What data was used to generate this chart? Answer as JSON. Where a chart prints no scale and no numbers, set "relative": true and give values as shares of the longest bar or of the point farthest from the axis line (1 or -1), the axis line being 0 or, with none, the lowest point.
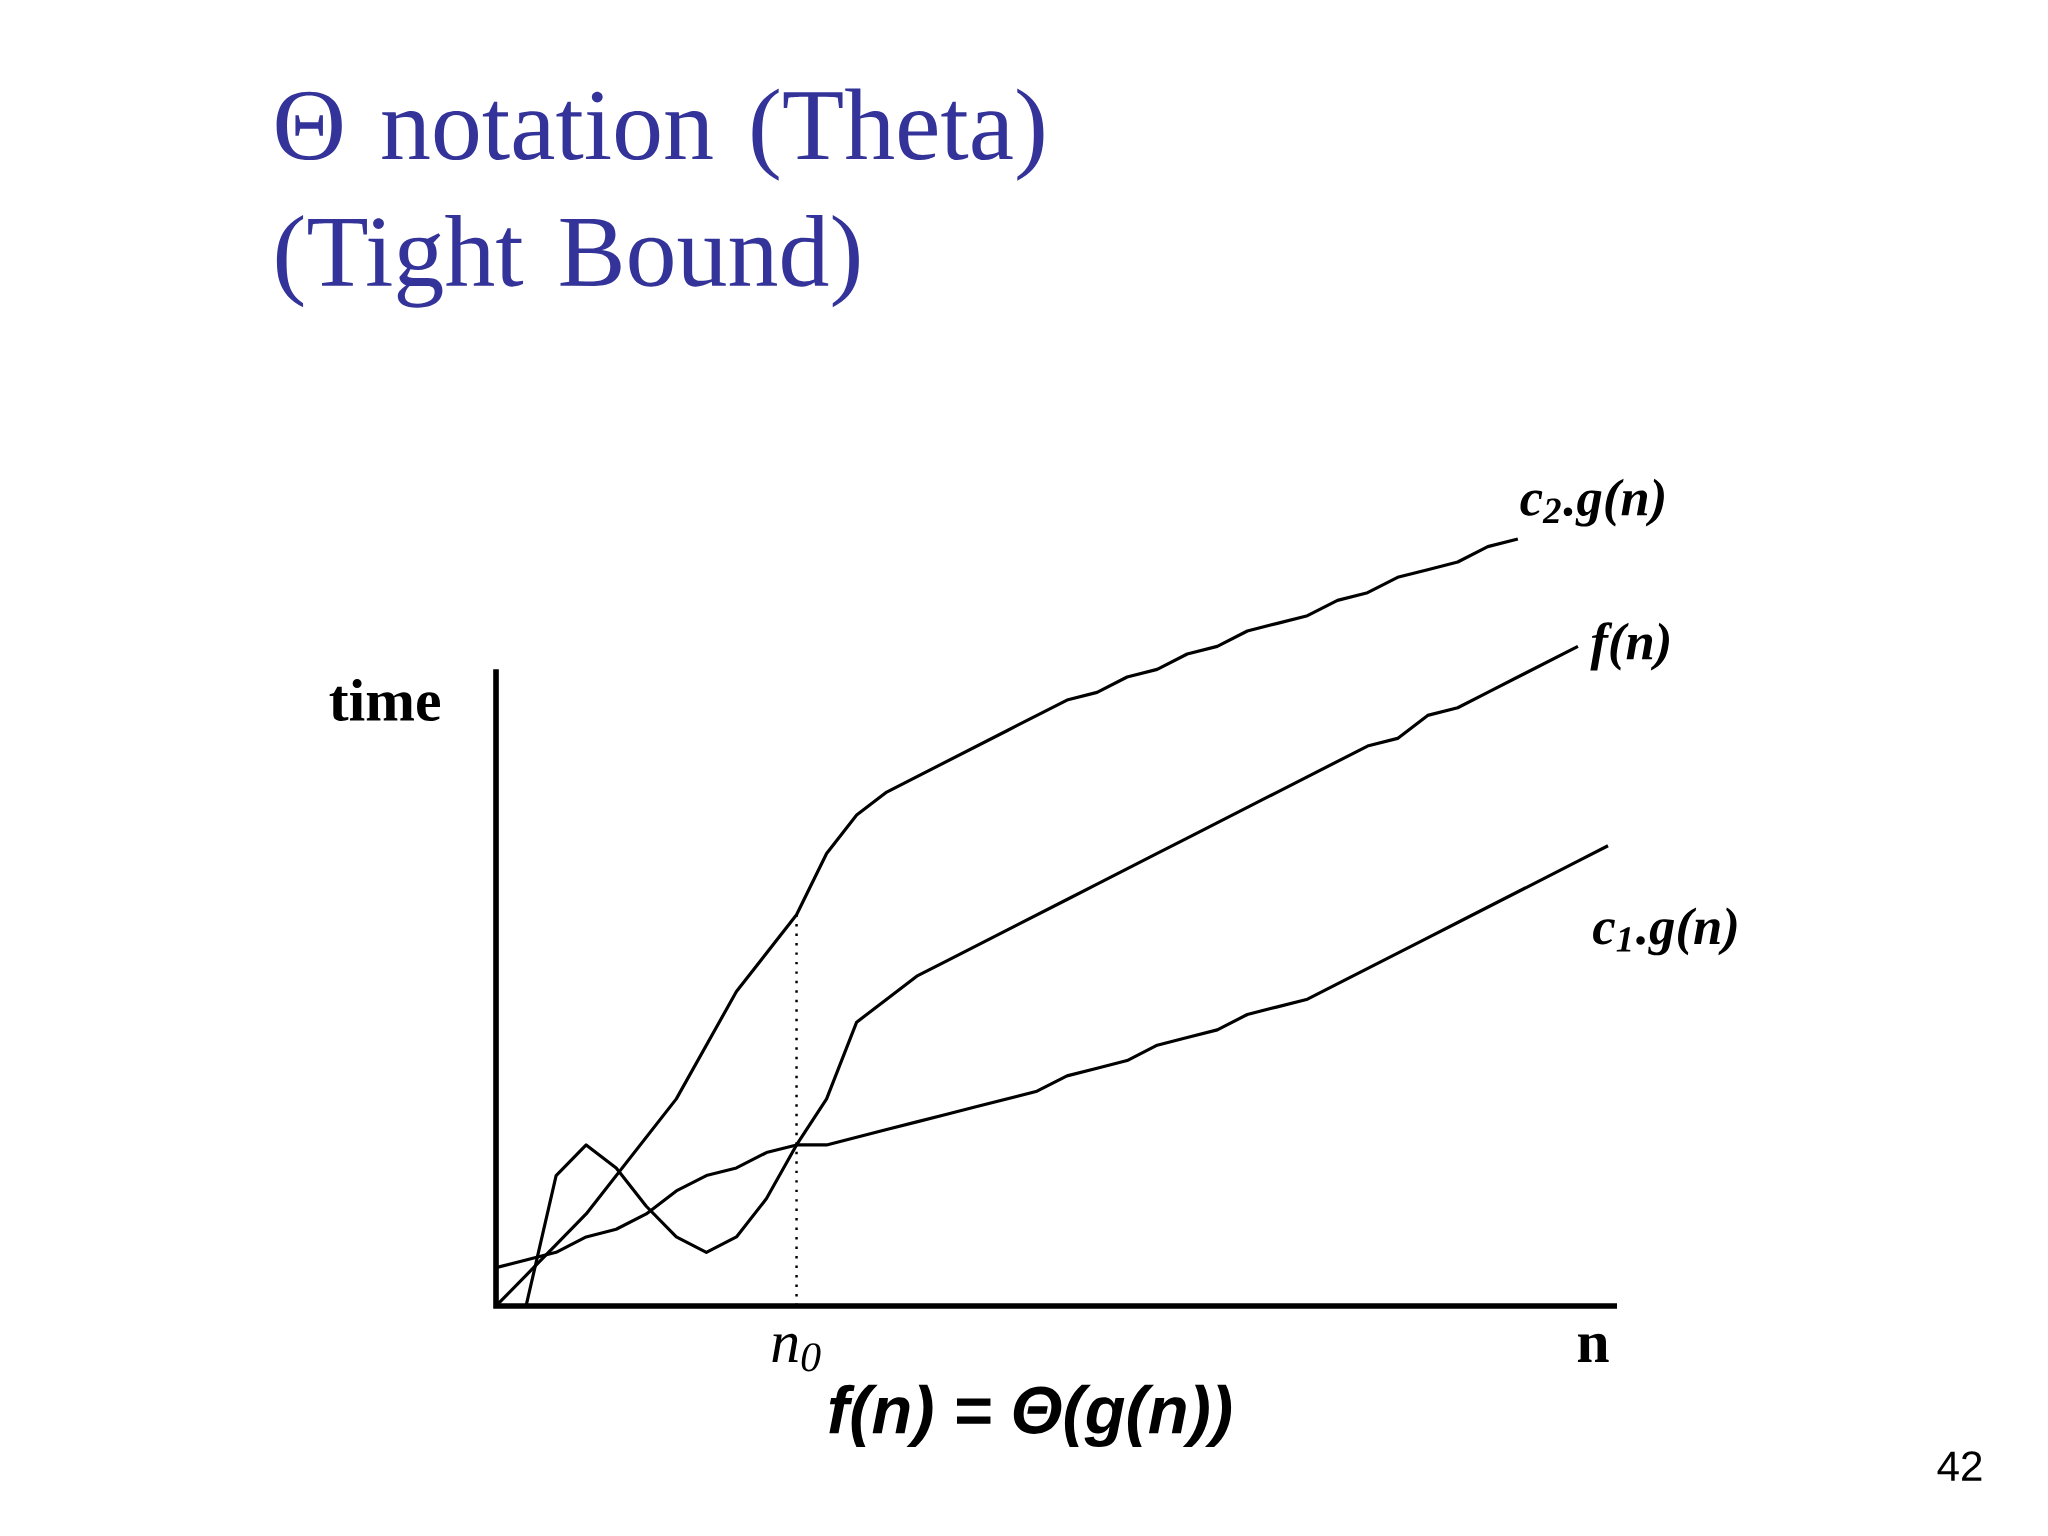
{
  "chart_data": {
    "type": "line",
    "relative": true,
    "title": "Θ notation (Theta) (Tight Bound)",
    "xlabel": "n",
    "ylabel": "time",
    "categories": [
      null,
      null,
      null,
      null,
      null,
      null,
      null,
      null,
      null,
      null,
      null,
      null,
      null,
      null,
      null,
      null,
      null,
      null,
      null,
      null,
      null,
      null,
      null,
      null,
      null,
      null,
      null,
      null,
      null,
      null,
      null,
      null,
      null,
      null,
      null,
      null,
      null,
      null
    ],
    "series": [
      {
        "name": "c$_{2}$.g(n)",
        "color": "#000000",
        "values": [
          0,
          0.04,
          0.08,
          0.12,
          0.17,
          0.22,
          0.27,
          0.34,
          0.41,
          0.46,
          0.51,
          0.59,
          0.64,
          0.67,
          0.69,
          0.71,
          0.73,
          0.75,
          0.77,
          0.79,
          0.8,
          0.82,
          0.83,
          0.85,
          0.86,
          0.88,
          0.89,
          0.9,
          0.92,
          0.93,
          0.95,
          0.96,
          0.97,
          0.99,
          1,
          null,
          null,
          null
        ]
      },
      {
        "name": "f(n)",
        "color": "#000000",
        "values": [
          null,
          0,
          0.17,
          0.21,
          0.18,
          0.13,
          0.09,
          0.07,
          0.09,
          0.14,
          0.21,
          0.27,
          0.37,
          0.4,
          0.43,
          0.45,
          0.47,
          0.49,
          0.51,
          0.53,
          0.55,
          0.57,
          0.59,
          0.61,
          0.63,
          0.65,
          0.67,
          0.69,
          0.71,
          0.73,
          0.74,
          0.77,
          0.78,
          0.8,
          0.82,
          0.84,
          0.86,
          null
        ]
      },
      {
        "name": "c$_{1}$.g(n)",
        "color": "#000000",
        "values": [
          0.05,
          0.06,
          0.07,
          0.09,
          0.1,
          0.12,
          0.15,
          0.17,
          0.18,
          0.2,
          0.21,
          0.21,
          0.22,
          0.23,
          0.24,
          0.25,
          0.26,
          0.27,
          0.28,
          0.3,
          0.31,
          0.32,
          0.34,
          0.35,
          0.36,
          0.38,
          0.39,
          0.4,
          0.42,
          0.44,
          0.46,
          0.48,
          0.5,
          0.52,
          0.54,
          0.56,
          0.58,
          0.6
        ]
      }
    ],
    "annotations": [
      "n$_{0}$",
      "f(n) = Θ(g(n))",
      "42"
    ],
    "marker": "none",
    "line_style": "solid"
  }
}
